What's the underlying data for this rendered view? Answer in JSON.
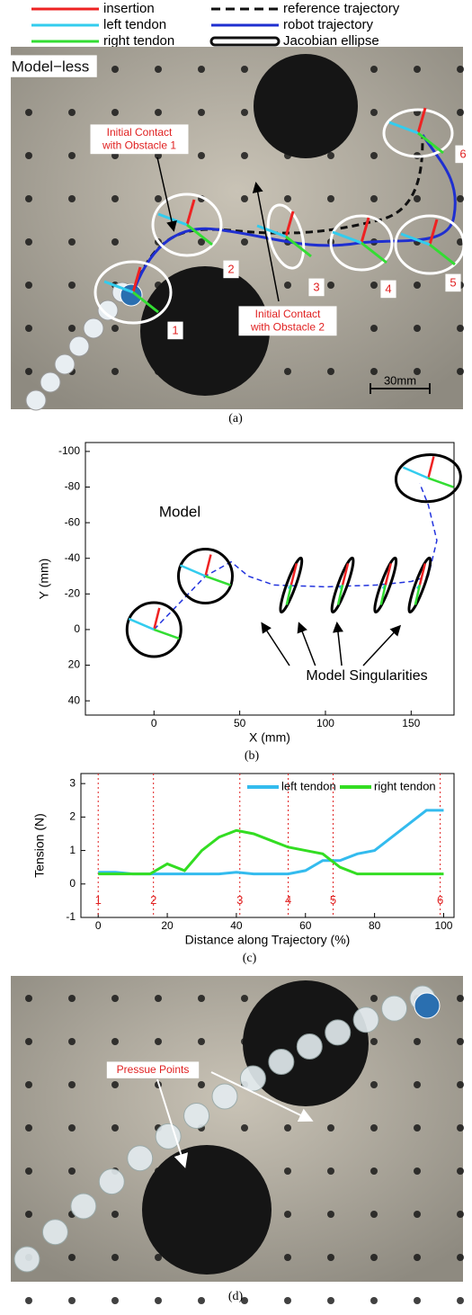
{
  "legend": {
    "items": [
      {
        "name": "insertion",
        "color": "#ee2222",
        "style": "solid"
      },
      {
        "name": "left tendon",
        "color": "#33ccee",
        "style": "solid"
      },
      {
        "name": "right tendon",
        "color": "#33dd33",
        "style": "solid"
      },
      {
        "name": "reference trajectory",
        "color": "#111111",
        "style": "dashed"
      },
      {
        "name": "robot trajectory",
        "color": "#1f2fd0",
        "style": "solid"
      },
      {
        "name": "Jacobian ellipse",
        "color": "#111111",
        "style": "double"
      }
    ]
  },
  "panel_a": {
    "label": "Model−less",
    "annotations": [
      {
        "lines": [
          "Initial Contact",
          "with Obstacle 1"
        ]
      },
      {
        "lines": [
          "Initial Contact",
          "with Obstacle 2"
        ]
      }
    ],
    "points": [
      "1",
      "2",
      "3",
      "4",
      "5",
      "6"
    ],
    "scale": "30mm",
    "caption": "(a)"
  },
  "chart_data": [
    {
      "type": "line",
      "title": "Model",
      "annotation": "Model Singularities",
      "caption": "(b)",
      "x_label": "X (mm)",
      "y_label": "Y (mm)",
      "xlim": [
        -40,
        175
      ],
      "xticks": [
        0,
        50,
        100,
        150
      ],
      "ylim": [
        48,
        -105
      ],
      "yticks": [
        -100,
        -80,
        -60,
        -40,
        -20,
        0,
        20,
        40
      ],
      "x": [
        0,
        10,
        20,
        30,
        45,
        55,
        70,
        100,
        130,
        150,
        160,
        165,
        160,
        155
      ],
      "series": [
        {
          "color": "#2233dd",
          "values": [
            0,
            -10,
            -20,
            -30,
            -38,
            -30,
            -25,
            -24,
            -25,
            -27,
            -30,
            -50,
            -70,
            -82
          ]
        }
      ],
      "ellipse_centers": {
        "x": [
          0,
          30,
          80,
          110,
          135,
          155,
          160
        ],
        "y": [
          0,
          -30,
          -25,
          -25,
          -25,
          -25,
          -85
        ]
      }
    },
    {
      "type": "line",
      "caption": "(c)",
      "x_label": "Distance along Trajectory (%)",
      "y_label": "Tension (N)",
      "xlim": [
        -5,
        103
      ],
      "xticks": [
        0,
        20,
        40,
        60,
        80,
        100
      ],
      "ylim": [
        -1,
        3.3
      ],
      "yticks": [
        -1,
        0,
        1,
        2,
        3
      ],
      "x": [
        0,
        5,
        10,
        15,
        20,
        25,
        30,
        35,
        40,
        45,
        50,
        55,
        60,
        65,
        70,
        75,
        80,
        85,
        90,
        95,
        100
      ],
      "series": [
        {
          "name": "left tendon",
          "color": "#33bbee",
          "values": [
            0.35,
            0.35,
            0.3,
            0.3,
            0.3,
            0.3,
            0.3,
            0.3,
            0.35,
            0.3,
            0.3,
            0.3,
            0.4,
            0.7,
            0.7,
            0.9,
            1.0,
            1.4,
            1.8,
            2.2,
            2.2
          ]
        },
        {
          "name": "right tendon",
          "color": "#33dd22",
          "values": [
            0.3,
            0.3,
            0.3,
            0.3,
            0.6,
            0.4,
            1.0,
            1.4,
            1.6,
            1.5,
            1.3,
            1.1,
            1.0,
            0.9,
            0.5,
            0.3,
            0.3,
            0.3,
            0.3,
            0.3,
            0.3
          ]
        }
      ],
      "markers": {
        "x": [
          0,
          16,
          41,
          55,
          68,
          99
        ],
        "labels": [
          "1",
          "2",
          "3",
          "4",
          "5",
          "6"
        ]
      }
    }
  ],
  "panel_d": {
    "annotation": "Pressue Points",
    "caption": "(d)"
  }
}
